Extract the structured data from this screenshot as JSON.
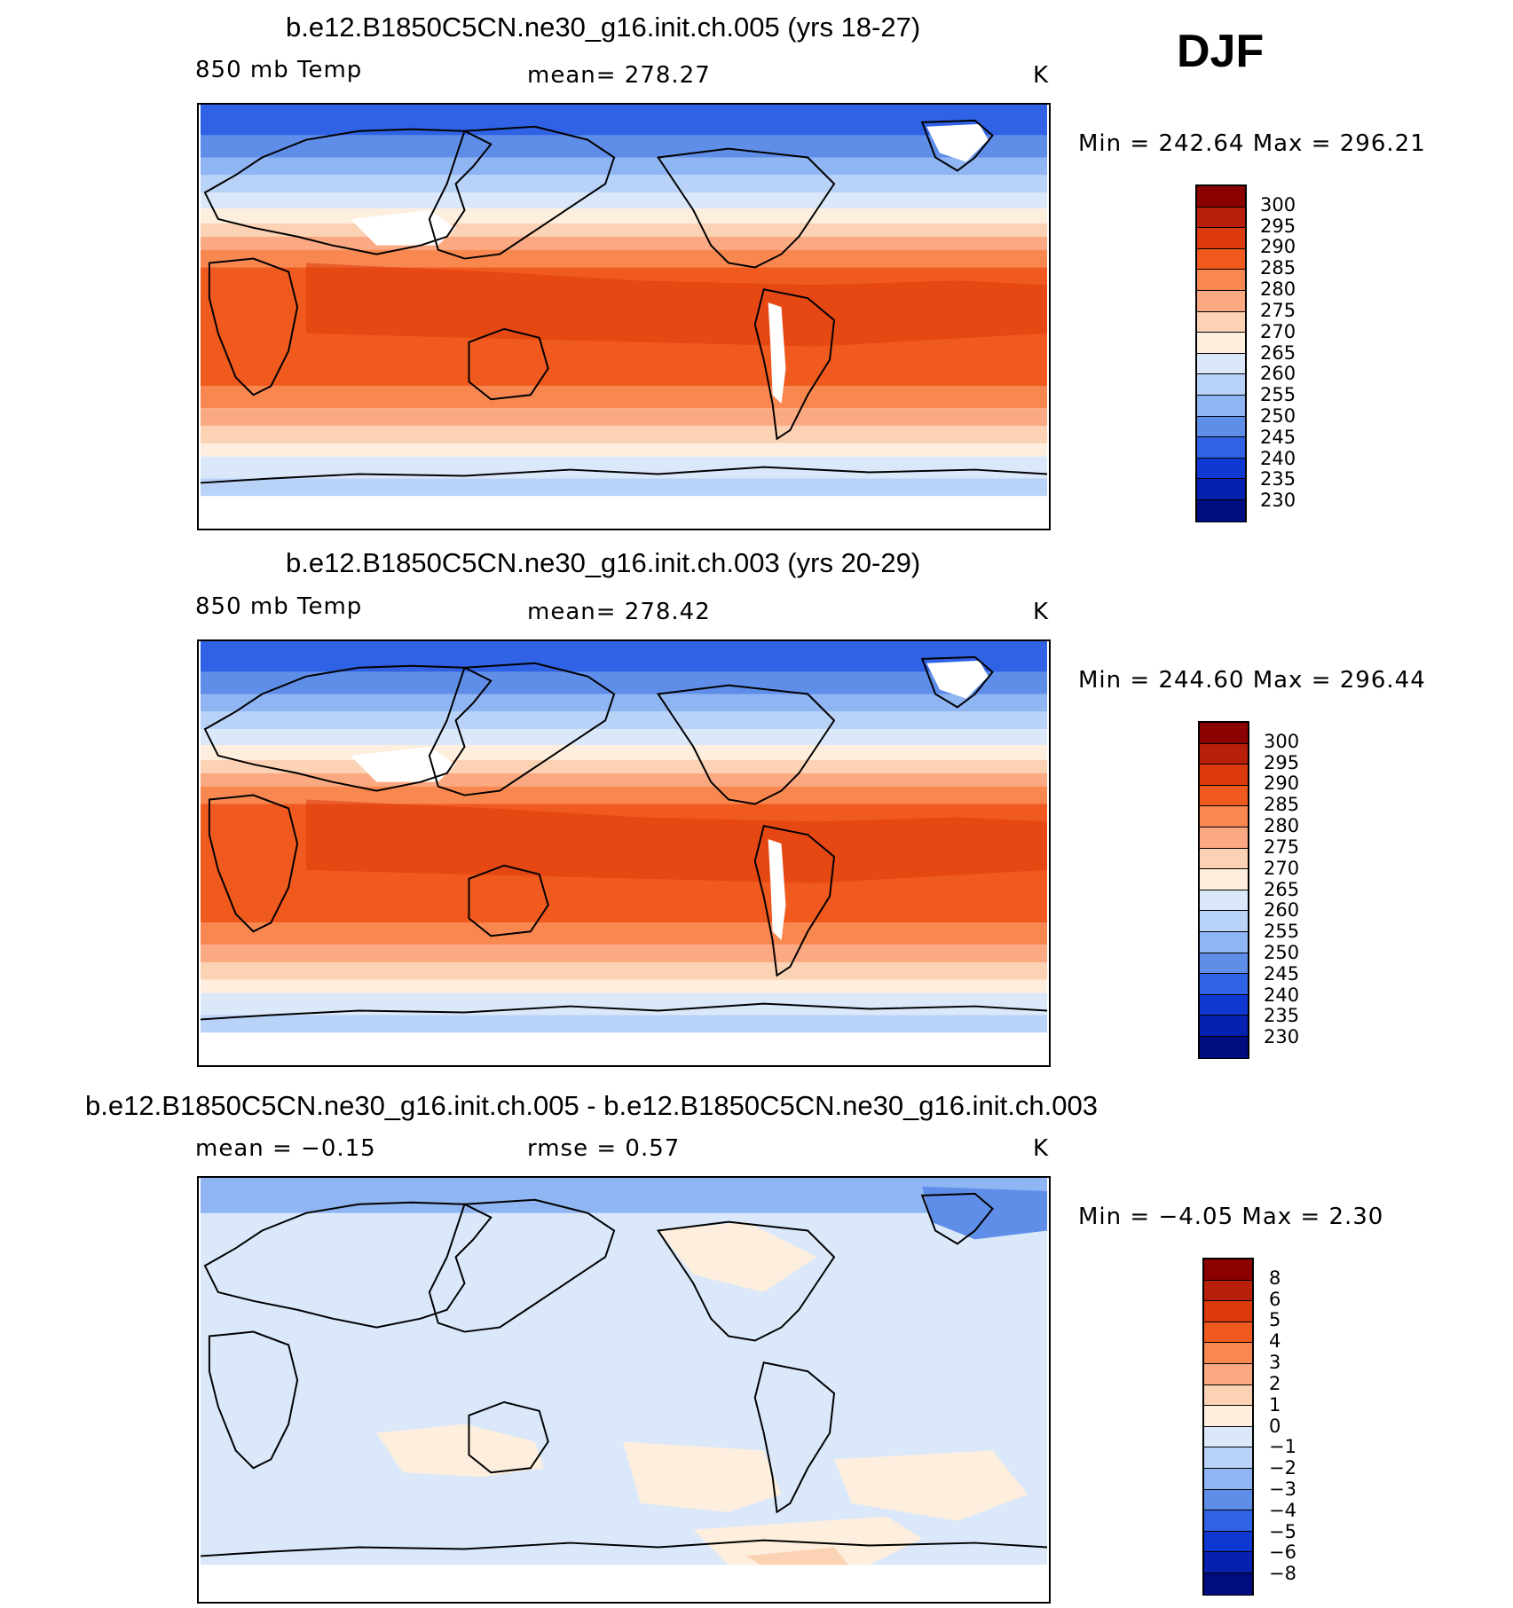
{
  "season_label": "DJF",
  "panels": [
    {
      "title": "b.e12.B1850C5CN.ne30_g16.init.ch.005 (yrs 18-27)",
      "variable": "850 mb Temp",
      "stat1": "mean=  278.27",
      "stat2": "",
      "units": "K",
      "minmax": "Min  =  242.64  Max  =  296.21",
      "map_kind": "abs",
      "colorbar_labels": [
        "300",
        "295",
        "290",
        "285",
        "280",
        "275",
        "270",
        "265",
        "260",
        "255",
        "250",
        "245",
        "240",
        "235",
        "230"
      ]
    },
    {
      "title": "b.e12.B1850C5CN.ne30_g16.init.ch.003 (yrs 20-29)",
      "variable": "850 mb Temp",
      "stat1": "mean=  278.42",
      "stat2": "",
      "units": "K",
      "minmax": "Min  =  244.60  Max  =  296.44",
      "map_kind": "abs",
      "colorbar_labels": [
        "300",
        "295",
        "290",
        "285",
        "280",
        "275",
        "270",
        "265",
        "260",
        "255",
        "250",
        "245",
        "240",
        "235",
        "230"
      ]
    },
    {
      "title": "b.e12.B1850C5CN.ne30_g16.init.ch.005 - b.e12.B1850C5CN.ne30_g16.init.ch.003",
      "variable": "",
      "stat1": "mean  =    −0.15",
      "stat2": "rmse  =     0.57",
      "units": "K",
      "minmax": "Min  =    −4.05  Max  =     2.30",
      "map_kind": "diff",
      "colorbar_labels": [
        "8",
        "6",
        "5",
        "4",
        "3",
        "2",
        "1",
        "0",
        "−1",
        "−2",
        "−3",
        "−4",
        "−5",
        "−6",
        "−8"
      ]
    }
  ],
  "colorbar_colors": [
    "#8b0000",
    "#b81f0a",
    "#dc3a0c",
    "#f15a1e",
    "#f88850",
    "#fba982",
    "#fcd2b4",
    "#feeedd",
    "#dbe8fa",
    "#b8d2f8",
    "#8fb5f3",
    "#5f8ee9",
    "#2f62e4",
    "#0f38d2",
    "#0620b0",
    "#000d80"
  ]
}
